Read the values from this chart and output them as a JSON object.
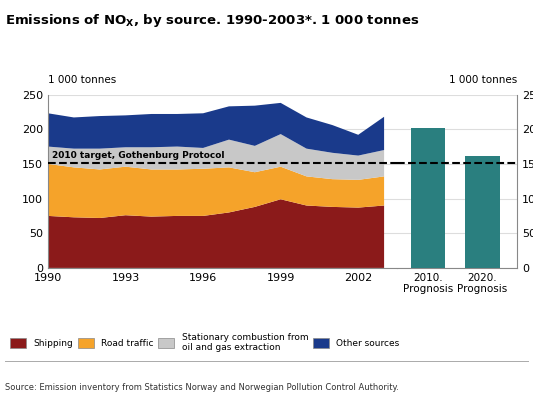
{
  "ylabel": "1 000 tonnes",
  "years": [
    1990,
    1991,
    1992,
    1993,
    1994,
    1995,
    1996,
    1997,
    1998,
    1999,
    2000,
    2001,
    2002,
    2003
  ],
  "shipping": [
    75,
    73,
    72,
    76,
    74,
    75,
    75,
    80,
    88,
    99,
    90,
    88,
    87,
    90
  ],
  "road_traffic": [
    75,
    72,
    70,
    70,
    68,
    67,
    68,
    65,
    50,
    47,
    42,
    40,
    40,
    42
  ],
  "stationary": [
    25,
    27,
    30,
    28,
    32,
    33,
    30,
    40,
    38,
    47,
    40,
    38,
    35,
    38
  ],
  "other_sources": [
    48,
    45,
    47,
    46,
    48,
    47,
    50,
    48,
    58,
    45,
    45,
    40,
    30,
    48
  ],
  "bar_categories": [
    "2010.\nPrognosis",
    "2020.\nPrognosis"
  ],
  "bar_values": [
    202,
    162
  ],
  "bar_color": "#2a7f7f",
  "target_line": 152,
  "target_label": "2010 target, Gothenburg Protocol",
  "ylim": [
    0,
    250
  ],
  "yticks": [
    0,
    50,
    100,
    150,
    200,
    250
  ],
  "colors": {
    "shipping": "#8b1a1a",
    "road_traffic": "#f5a32a",
    "stationary": "#c8c8c8",
    "other_sources": "#1a3a8b"
  },
  "legend": [
    {
      "label": "Shipping",
      "color": "#8b1a1a"
    },
    {
      "label": "Road traffic",
      "color": "#f5a32a"
    },
    {
      "label": "Stationary combustion from\noil and gas extraction",
      "color": "#c8c8c8"
    },
    {
      "label": "Other sources",
      "color": "#1a3a8b"
    }
  ],
  "source_text": "Source: Emission inventory from Statistics Norway and Norwegian Pollution Control Authority.",
  "bg_color": "#ffffff",
  "grid_color": "#dddddd"
}
